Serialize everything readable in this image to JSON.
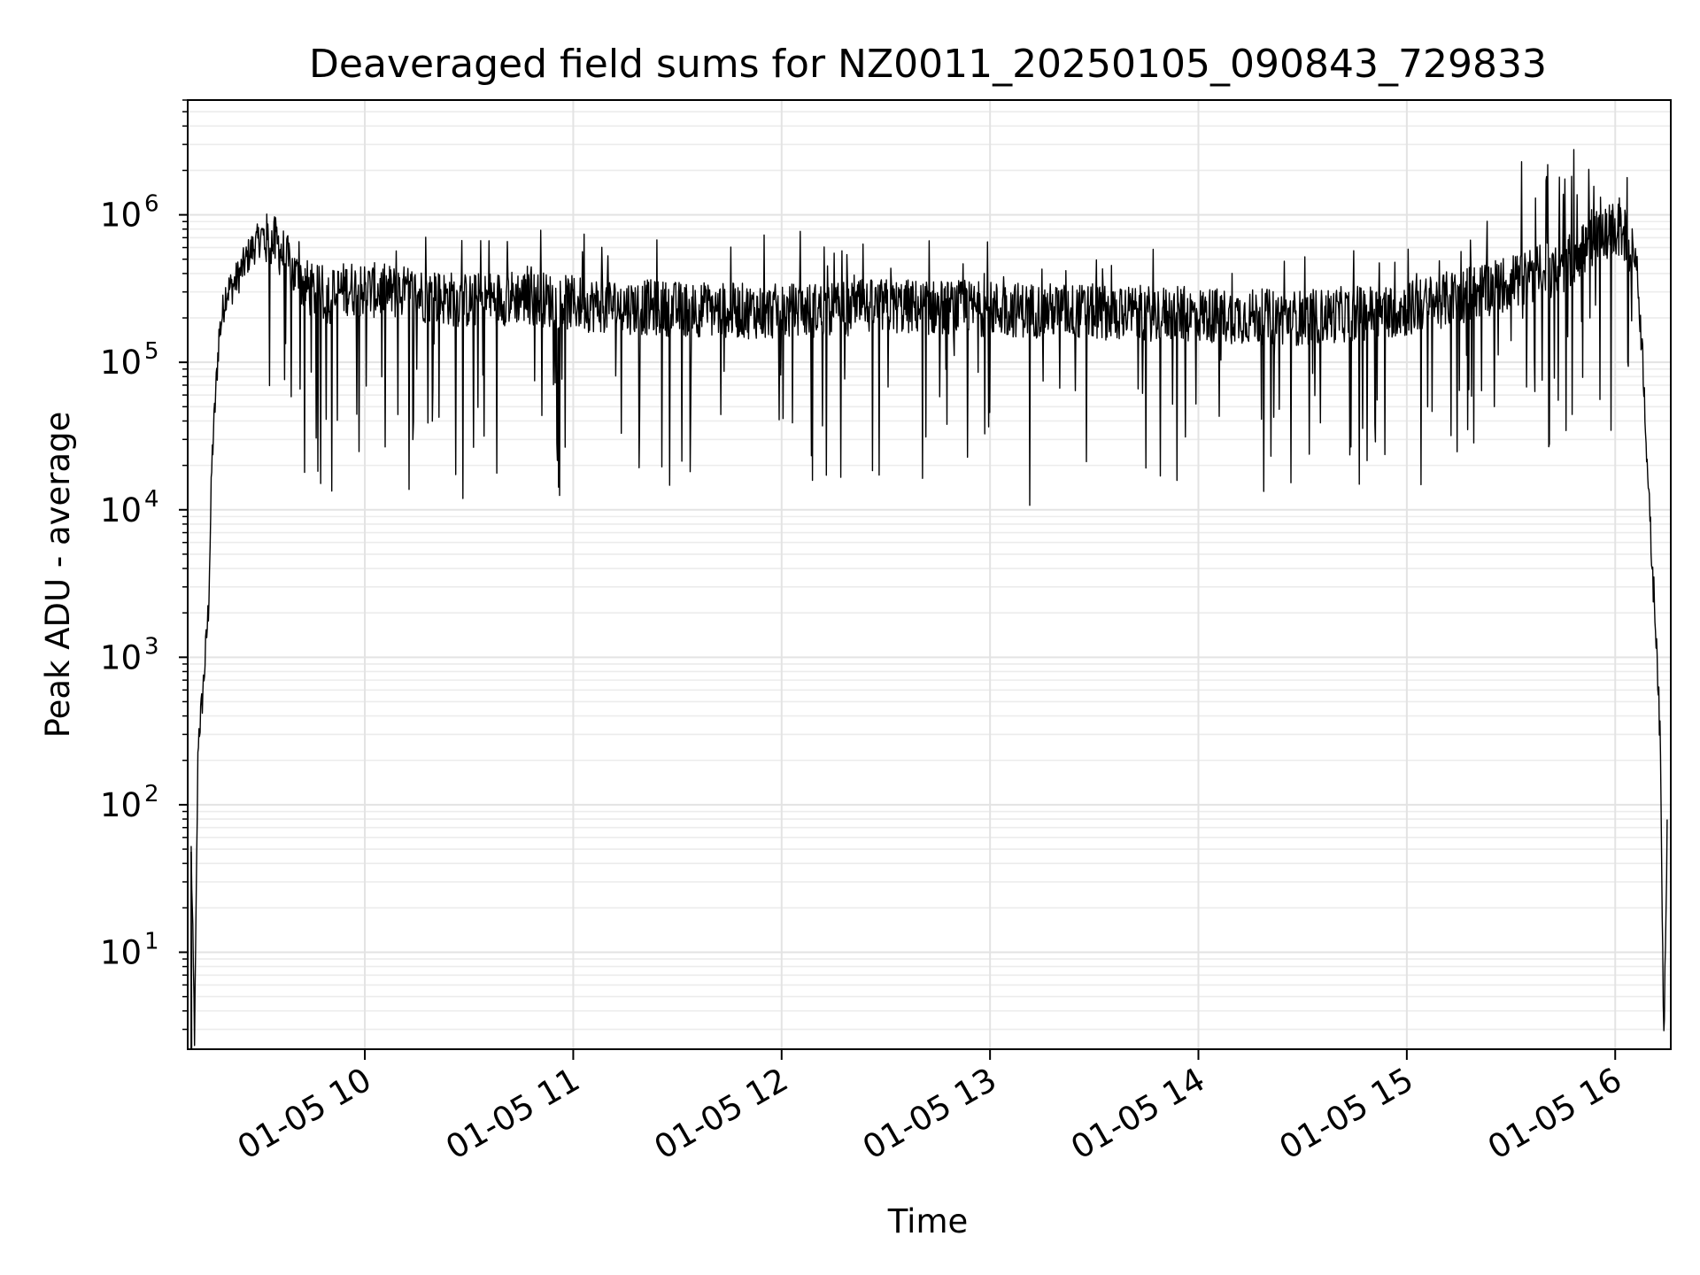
{
  "chart_data": {
    "type": "line",
    "title": "Deaveraged field sums for NZ0011_20250105_090843_729833",
    "xlabel": "Time",
    "ylabel": "Peak ADU - average",
    "yscale": "log",
    "ylim": [
      2.2,
      6000000
    ],
    "xlim": [
      "2025-01-05 09:09",
      "2025-01-05 16:16"
    ],
    "grid": true,
    "x_ticks": [
      "01-05 10",
      "01-05 11",
      "01-05 12",
      "01-05 13",
      "01-05 14",
      "01-05 15",
      "01-05 16"
    ],
    "y_ticks": [
      {
        "base": "10",
        "exp": "1"
      },
      {
        "base": "10",
        "exp": "2"
      },
      {
        "base": "10",
        "exp": "3"
      },
      {
        "base": "10",
        "exp": "4"
      },
      {
        "base": "10",
        "exp": "5"
      },
      {
        "base": "10",
        "exp": "6"
      }
    ],
    "line_color": "#000000",
    "series": [
      {
        "x": [
          "2025-01-05 09:10",
          "2025-01-05 09:11",
          "2025-01-05 09:12",
          "2025-01-05 09:13",
          "2025-01-05 09:14",
          "2025-01-05 09:15",
          "2025-01-05 09:16",
          "2025-01-05 09:18",
          "2025-01-05 09:20",
          "2025-01-05 09:22",
          "2025-01-05 09:24",
          "2025-01-05 09:27",
          "2025-01-05 09:30",
          "2025-01-05 09:35",
          "2025-01-05 09:40",
          "2025-01-05 09:45",
          "2025-01-05 09:50",
          "2025-01-05 09:55",
          "2025-01-05 10:00",
          "2025-01-05 10:15",
          "2025-01-05 10:30",
          "2025-01-05 10:45",
          "2025-01-05 11:00",
          "2025-01-05 11:30",
          "2025-01-05 12:00",
          "2025-01-05 12:30",
          "2025-01-05 13:00",
          "2025-01-05 13:30",
          "2025-01-05 14:00",
          "2025-01-05 14:30",
          "2025-01-05 15:00",
          "2025-01-05 15:15",
          "2025-01-05 15:30",
          "2025-01-05 15:45",
          "2025-01-05 15:55",
          "2025-01-05 16:00",
          "2025-01-05 16:03",
          "2025-01-05 16:06",
          "2025-01-05 16:08",
          "2025-01-05 16:10",
          "2025-01-05 16:11",
          "2025-01-05 16:12",
          "2025-01-05 16:13",
          "2025-01-05 16:14",
          "2025-01-05 16:15"
        ],
        "y": [
          48,
          2.5,
          280,
          450,
          950,
          2200,
          22000,
          150000,
          300000,
          330000,
          400000,
          560000,
          700000,
          620000,
          380000,
          300000,
          280000,
          320000,
          310000,
          290000,
          260000,
          280000,
          250000,
          230000,
          220000,
          240000,
          230000,
          220000,
          210000,
          200000,
          230000,
          280000,
          350000,
          450000,
          700000,
          800000,
          720000,
          520000,
          100000,
          8000,
          3000,
          1200,
          230,
          2.5,
          85
        ]
      }
    ],
    "noise": {
      "dips_min": 10500,
      "spikes_max": 3100000
    }
  }
}
